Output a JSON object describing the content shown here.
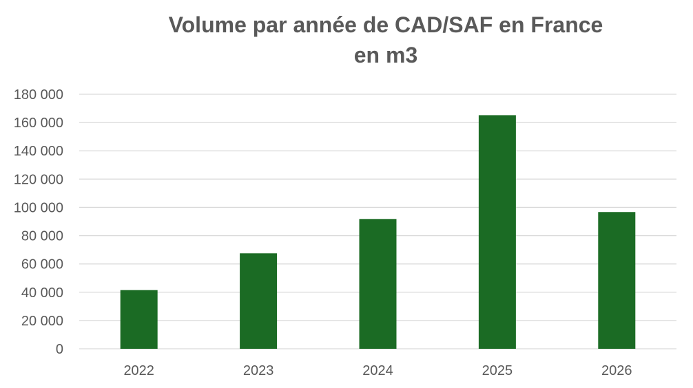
{
  "chart_data": {
    "type": "bar",
    "title": "Volume par année de CAD/SAF en France en m3",
    "categories": [
      "2022",
      "2023",
      "2024",
      "2025",
      "2026"
    ],
    "series": [
      {
        "values": [
          41500,
          67500,
          91800,
          165200,
          96700
        ]
      }
    ],
    "ylim": [
      0,
      180000
    ],
    "yticks": [
      0,
      20000,
      40000,
      60000,
      80000,
      100000,
      120000,
      140000,
      160000,
      180000
    ],
    "ytick_labels": [
      "0",
      "20 000",
      "40 000",
      "60 000",
      "80 000",
      "100 000",
      "120 000",
      "140 000",
      "160 000",
      "180 000"
    ],
    "grid": true,
    "legend": "none",
    "colors": {
      "bar": "#1b6b24",
      "grid": "#d9d9d9",
      "text": "#595959"
    }
  }
}
